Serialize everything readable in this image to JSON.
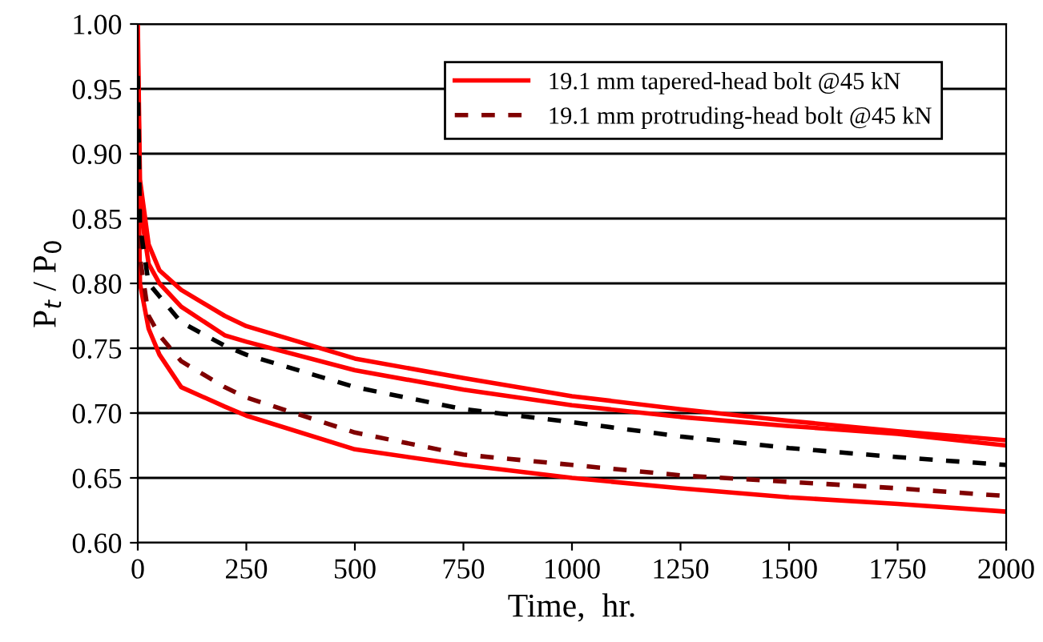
{
  "chart_data": {
    "type": "line",
    "xlabel": "Time,  hr.",
    "ylabel": "P$_{t}$ / P$_{0}$",
    "xlim": [
      0,
      2000
    ],
    "xticks": [
      0,
      250,
      500,
      750,
      1000,
      1250,
      1500,
      1750,
      2000
    ],
    "ylim": [
      0.6,
      1.0
    ],
    "yticks": [
      {
        "value": 0.6,
        "label": "0.60"
      },
      {
        "value": 0.65,
        "label": "0.65"
      },
      {
        "value": 0.7,
        "label": "0.70"
      },
      {
        "value": 0.75,
        "label": "0.75"
      },
      {
        "value": 0.8,
        "label": "0.80"
      },
      {
        "value": 0.85,
        "label": "0.85"
      },
      {
        "value": 0.9,
        "label": "0.90"
      },
      {
        "value": 0.95,
        "label": "0.95"
      },
      {
        "value": 1.0,
        "label": "1.00"
      }
    ],
    "grid": "y",
    "legend": "top right",
    "series": [
      {
        "name": "19.1 mm tapered-head bolt @45 kN",
        "color": "#ff0000",
        "line_style": "solid",
        "x": [
          0,
          5,
          25,
          50,
          100,
          200,
          250,
          500,
          750,
          1000,
          1250,
          1500,
          1750,
          2000
        ],
        "values": [
          1.0,
          0.88,
          0.83,
          0.81,
          0.795,
          0.775,
          0.767,
          0.742,
          0.727,
          0.713,
          0.703,
          0.694,
          0.686,
          0.679
        ]
      },
      {
        "color": "#ff0000",
        "line_style": "solid",
        "x": [
          0,
          5,
          25,
          50,
          100,
          200,
          250,
          500,
          750,
          1000,
          1250,
          1500,
          1750,
          2000
        ],
        "values": [
          0.98,
          0.86,
          0.815,
          0.8,
          0.782,
          0.76,
          0.755,
          0.733,
          0.718,
          0.706,
          0.697,
          0.69,
          0.684,
          0.675
        ]
      },
      {
        "color": "#ff0000",
        "line_style": "solid",
        "x": [
          0,
          5,
          25,
          50,
          100,
          200,
          250,
          500,
          750,
          1000,
          1250,
          1500,
          1750,
          2000
        ],
        "values": [
          0.92,
          0.8,
          0.765,
          0.745,
          0.72,
          0.705,
          0.698,
          0.672,
          0.66,
          0.65,
          0.642,
          0.635,
          0.63,
          0.624
        ]
      },
      {
        "name": "19.1 mm protruding-head bolt @45 kN",
        "color": "#800000",
        "line_style": "dashed",
        "x": [
          0,
          5,
          25,
          50,
          100,
          200,
          250,
          500,
          750,
          1000,
          1250,
          1500,
          1750,
          2000
        ],
        "values": [
          0.94,
          0.82,
          0.775,
          0.76,
          0.74,
          0.72,
          0.712,
          0.685,
          0.668,
          0.66,
          0.652,
          0.647,
          0.642,
          0.636
        ]
      },
      {
        "color": "#000000",
        "line_style": "dashed",
        "x": [
          0,
          5,
          25,
          50,
          100,
          200,
          250,
          500,
          750,
          1000,
          1250,
          1500,
          1750,
          2000
        ],
        "values": [
          0.96,
          0.845,
          0.8,
          0.79,
          0.77,
          0.752,
          0.745,
          0.72,
          0.703,
          0.693,
          0.682,
          0.673,
          0.666,
          0.66
        ]
      }
    ]
  }
}
